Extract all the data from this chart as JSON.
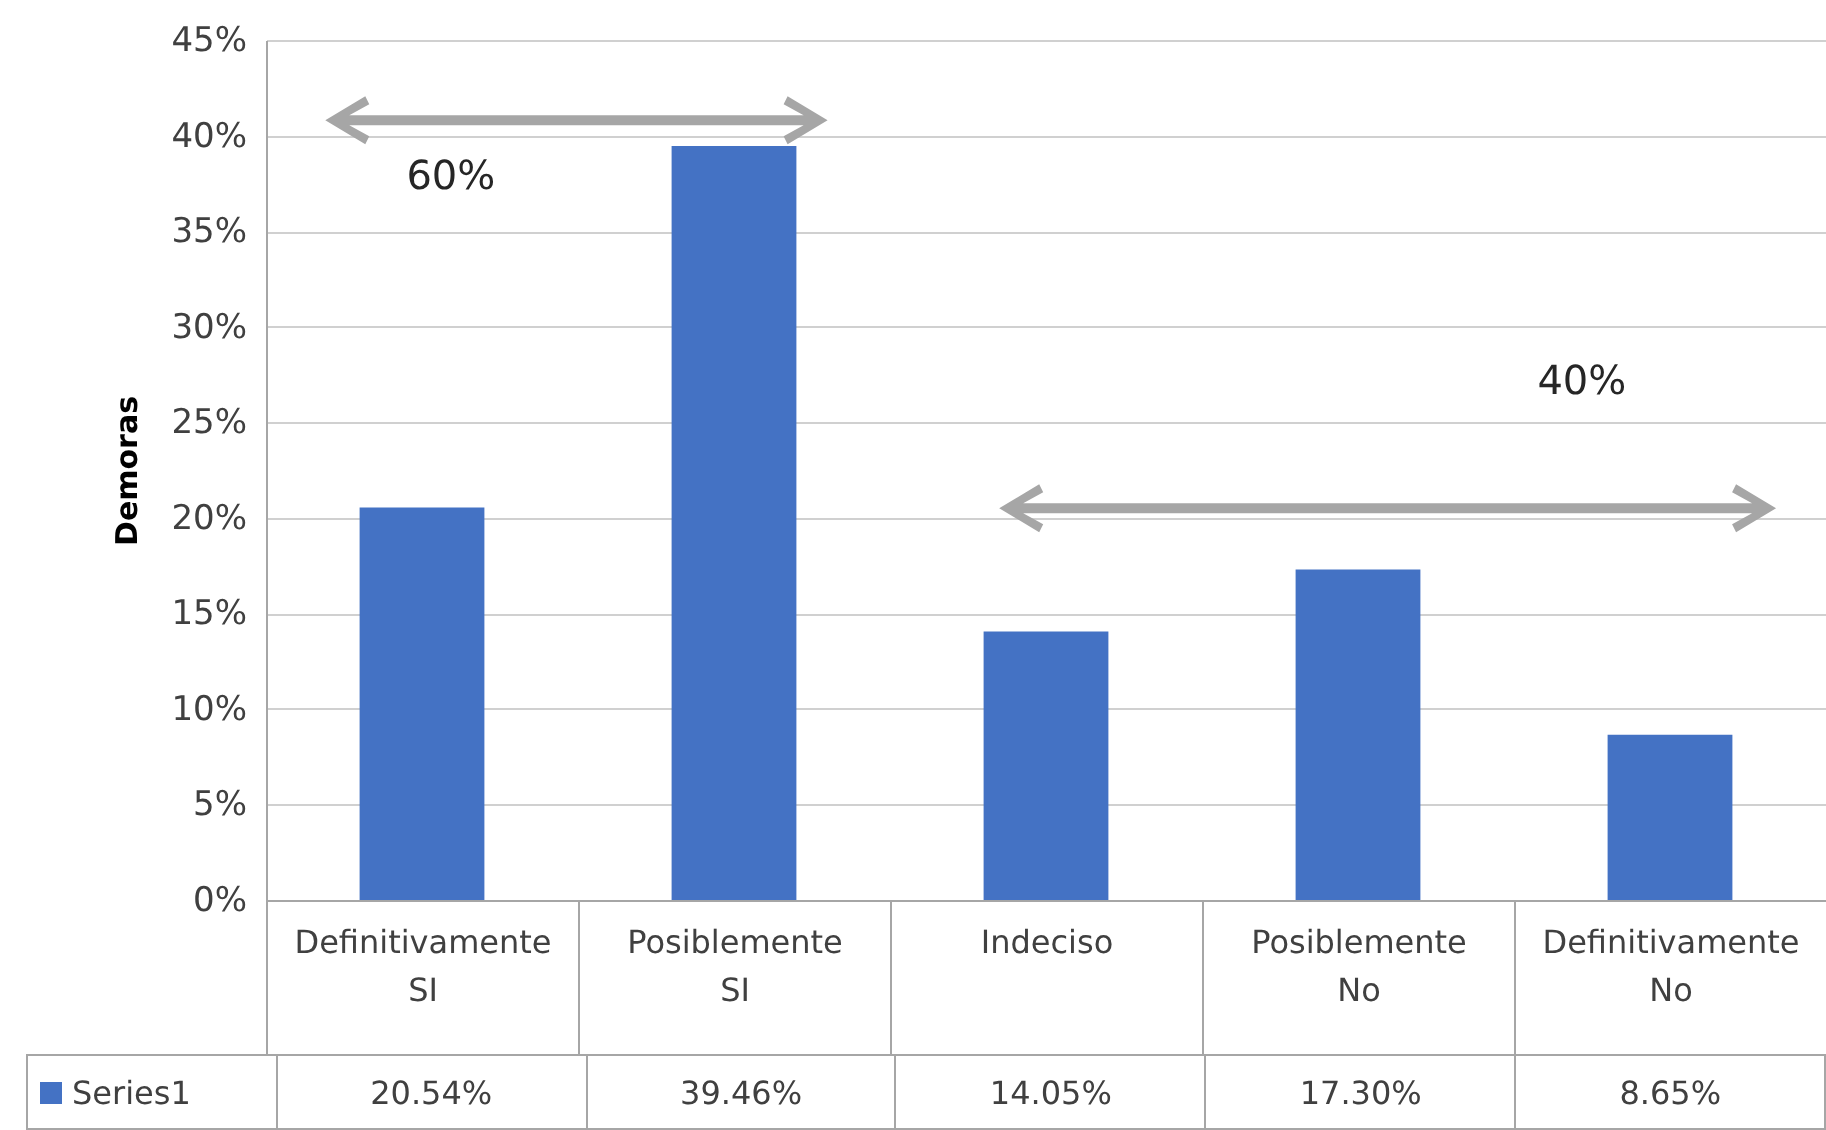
{
  "chart_data": {
    "type": "bar",
    "ylabel": "Demoras",
    "categories": [
      "Definitivamente SI",
      "Posiblemente SI",
      "Indeciso",
      "Posiblemente No",
      "Definitivamente No"
    ],
    "series": [
      {
        "name": "Series1",
        "color": "#4472c4",
        "values": [
          20.54,
          39.46,
          14.05,
          17.3,
          8.65
        ],
        "value_labels": [
          "20.54%",
          "39.46%",
          "14.05%",
          "17.30%",
          "8.65%"
        ]
      }
    ],
    "ylim": [
      0,
      45
    ],
    "yticks": [
      {
        "value": 0,
        "label": "0%"
      },
      {
        "value": 5,
        "label": "5%"
      },
      {
        "value": 10,
        "label": "10%"
      },
      {
        "value": 15,
        "label": "15%"
      },
      {
        "value": 20,
        "label": "20%"
      },
      {
        "value": 25,
        "label": "25%"
      },
      {
        "value": 30,
        "label": "30%"
      },
      {
        "value": 35,
        "label": "35%"
      },
      {
        "value": 40,
        "label": "40%"
      },
      {
        "value": 45,
        "label": "45%"
      }
    ],
    "grid": "y",
    "legend": "bottom",
    "annotations": [
      "60%",
      "40%"
    ]
  }
}
